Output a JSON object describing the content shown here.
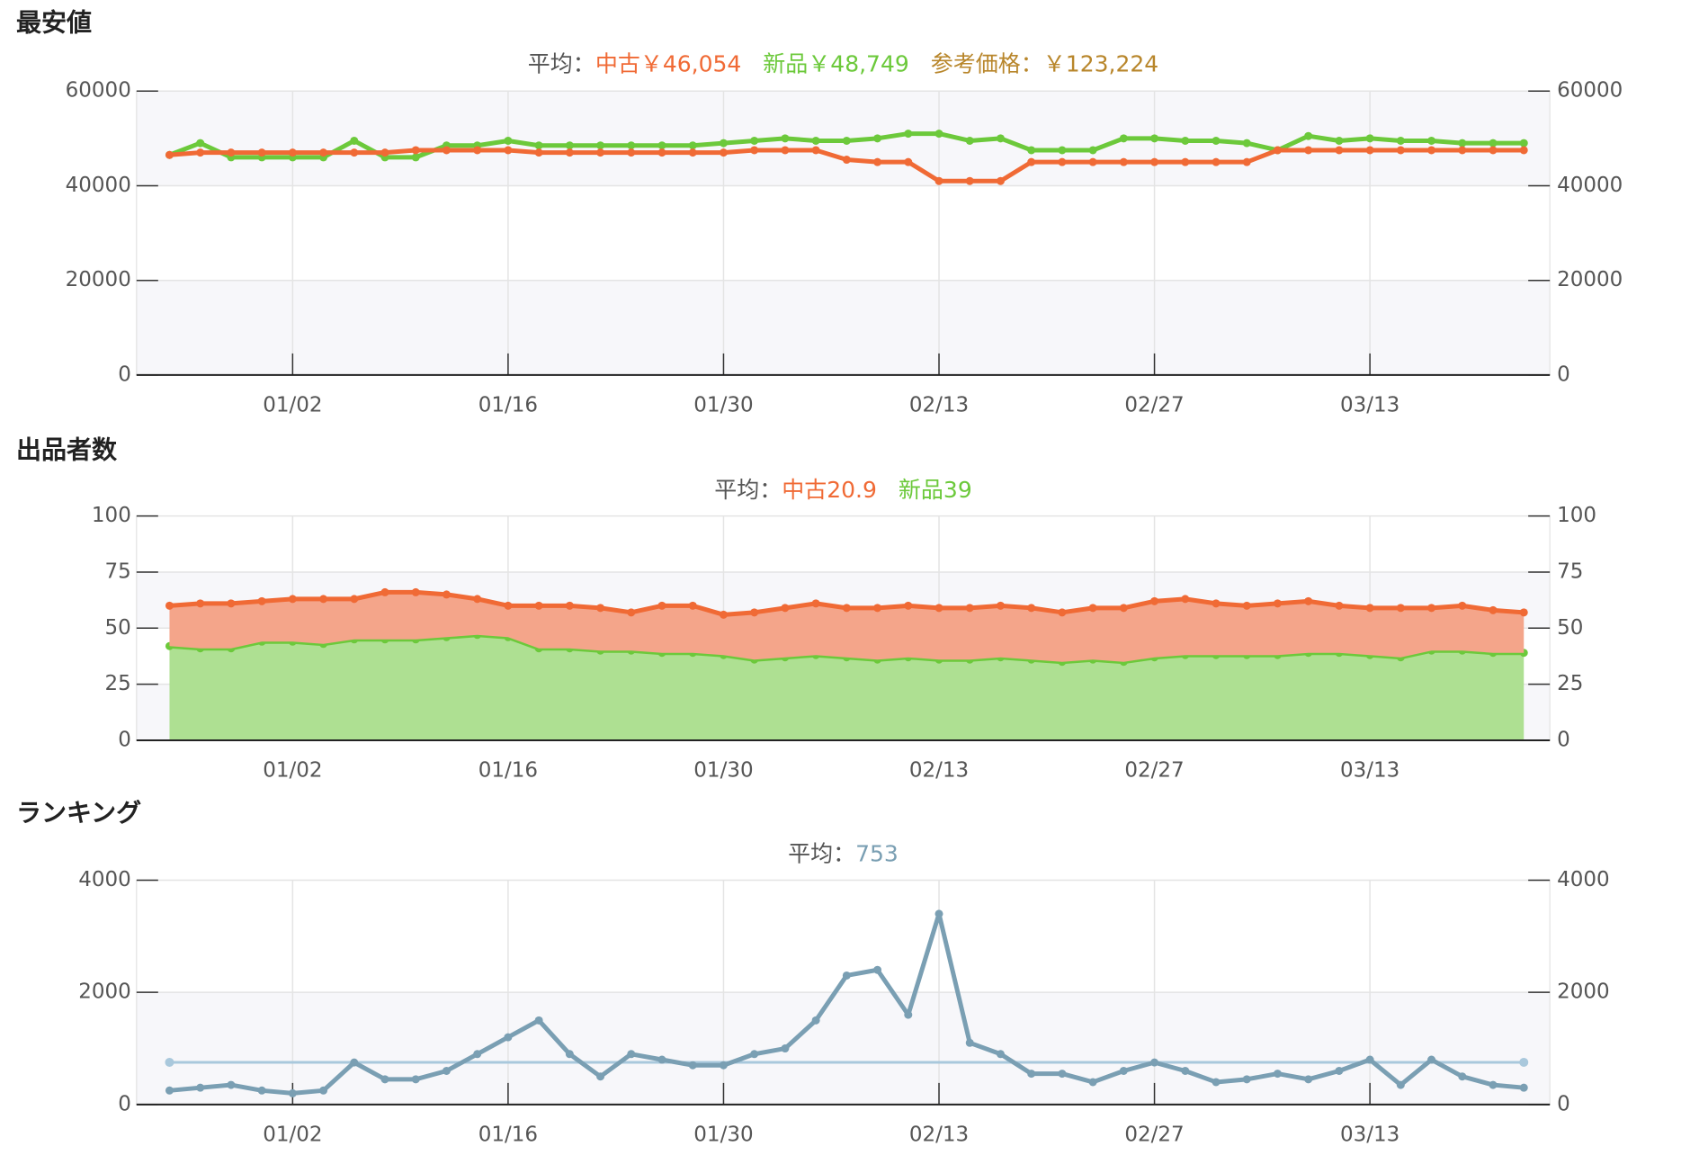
{
  "chart_data": [
    {
      "type": "line",
      "title": "最安値",
      "subtitle_label": "平均：",
      "reference_price": "参考価格：￥123,224",
      "x": [
        "12/25",
        "12/27",
        "12/29",
        "12/31",
        "01/02",
        "01/04",
        "01/06",
        "01/08",
        "01/10",
        "01/12",
        "01/14",
        "01/16",
        "01/18",
        "01/20",
        "01/22",
        "01/24",
        "01/26",
        "01/28",
        "01/30",
        "02/01",
        "02/03",
        "02/05",
        "02/07",
        "02/09",
        "02/11",
        "02/13",
        "02/15",
        "02/17",
        "02/19",
        "02/21",
        "02/23",
        "02/25",
        "02/27",
        "03/01",
        "03/03",
        "03/05",
        "03/07",
        "03/09",
        "03/11",
        "03/13",
        "03/15",
        "03/17",
        "03/19",
        "03/21",
        "03/23"
      ],
      "xticks": [
        "01/02",
        "01/16",
        "01/30",
        "02/13",
        "02/27",
        "03/13"
      ],
      "ylim": [
        0,
        60000
      ],
      "yticks": [
        0,
        20000,
        40000,
        60000
      ],
      "grid": true,
      "series": [
        {
          "label": "新品￥48,749",
          "color": "#6cc93b",
          "values": [
            46500,
            49000,
            46000,
            46000,
            46000,
            46000,
            49500,
            46000,
            46000,
            48500,
            48500,
            49500,
            48500,
            48500,
            48500,
            48500,
            48500,
            48500,
            49000,
            49500,
            50000,
            49500,
            49500,
            50000,
            51000,
            51000,
            49500,
            50000,
            47500,
            47500,
            47500,
            50000,
            50000,
            49500,
            49500,
            49000,
            47500,
            50500,
            49500,
            50000,
            49500,
            49500,
            49000,
            49000,
            49000
          ]
        },
        {
          "label": "中古￥46,054",
          "color": "#f06a35",
          "values": [
            46500,
            47000,
            47000,
            47000,
            47000,
            47000,
            47000,
            47000,
            47500,
            47500,
            47500,
            47500,
            47000,
            47000,
            47000,
            47000,
            47000,
            47000,
            47000,
            47500,
            47500,
            47500,
            45500,
            45000,
            45000,
            41000,
            41000,
            41000,
            45000,
            45000,
            45000,
            45000,
            45000,
            45000,
            45000,
            45000,
            47500,
            47500,
            47500,
            47500,
            47500,
            47500,
            47500,
            47500,
            47500
          ]
        }
      ]
    },
    {
      "type": "stacked_area",
      "title": "出品者数",
      "subtitle_label": "平均：",
      "x": [
        "12/25",
        "12/27",
        "12/29",
        "12/31",
        "01/02",
        "01/04",
        "01/06",
        "01/08",
        "01/10",
        "01/12",
        "01/14",
        "01/16",
        "01/18",
        "01/20",
        "01/22",
        "01/24",
        "01/26",
        "01/28",
        "01/30",
        "02/01",
        "02/03",
        "02/05",
        "02/07",
        "02/09",
        "02/11",
        "02/13",
        "02/15",
        "02/17",
        "02/19",
        "02/21",
        "02/23",
        "02/25",
        "02/27",
        "03/01",
        "03/03",
        "03/05",
        "03/07",
        "03/09",
        "03/11",
        "03/13",
        "03/15",
        "03/17",
        "03/19",
        "03/21",
        "03/23"
      ],
      "xticks": [
        "01/02",
        "01/16",
        "01/30",
        "02/13",
        "02/27",
        "03/13"
      ],
      "ylim": [
        0,
        100
      ],
      "yticks": [
        0,
        25,
        50,
        75,
        100
      ],
      "grid": true,
      "series": [
        {
          "label": "新品39",
          "color": "#6cc93b",
          "fill": "#aee092",
          "values": [
            42,
            41,
            41,
            44,
            44,
            43,
            45,
            45,
            45,
            46,
            47,
            46,
            41,
            41,
            40,
            40,
            39,
            39,
            38,
            36,
            37,
            38,
            37,
            36,
            37,
            36,
            36,
            37,
            36,
            35,
            36,
            35,
            37,
            38,
            38,
            38,
            38,
            39,
            39,
            38,
            37,
            40,
            40,
            39,
            39
          ]
        },
        {
          "label": "中古20.9",
          "color": "#f06a35",
          "fill": "#f4a58a",
          "values": [
            18,
            20,
            20,
            18,
            19,
            20,
            18,
            21,
            21,
            19,
            16,
            14,
            19,
            19,
            19,
            17,
            21,
            21,
            18,
            21,
            22,
            23,
            22,
            23,
            23,
            23,
            23,
            23,
            23,
            22,
            23,
            24,
            25,
            25,
            23,
            22,
            23,
            23,
            21,
            21,
            22,
            19,
            20,
            19,
            18
          ]
        }
      ]
    },
    {
      "type": "line",
      "title": "ランキング",
      "subtitle_label": "平均：",
      "average": 753,
      "average_color": "#a9c8dc",
      "x": [
        "12/25",
        "12/27",
        "12/29",
        "12/31",
        "01/02",
        "01/04",
        "01/06",
        "01/08",
        "01/10",
        "01/12",
        "01/14",
        "01/16",
        "01/18",
        "01/20",
        "01/22",
        "01/24",
        "01/26",
        "01/28",
        "01/30",
        "02/01",
        "02/03",
        "02/05",
        "02/07",
        "02/09",
        "02/11",
        "02/13",
        "02/15",
        "02/17",
        "02/19",
        "02/21",
        "02/23",
        "02/25",
        "02/27",
        "03/01",
        "03/03",
        "03/05",
        "03/07",
        "03/09",
        "03/11",
        "03/13",
        "03/15",
        "03/17",
        "03/19",
        "03/21",
        "03/23"
      ],
      "xticks": [
        "01/02",
        "01/16",
        "01/30",
        "02/13",
        "02/27",
        "03/13"
      ],
      "ylim": [
        0,
        4000
      ],
      "yticks": [
        0,
        2000,
        4000
      ],
      "grid": true,
      "series": [
        {
          "color": "#7a9fb3",
          "values": [
            250,
            300,
            350,
            250,
            200,
            250,
            750,
            450,
            450,
            600,
            900,
            1200,
            1500,
            900,
            500,
            900,
            800,
            700,
            700,
            900,
            1000,
            1500,
            2300,
            2400,
            1600,
            3400,
            1100,
            900,
            550,
            550,
            400,
            600,
            750,
            600,
            400,
            450,
            550,
            450,
            600,
            800,
            350,
            800,
            500,
            350,
            300
          ]
        }
      ]
    }
  ]
}
